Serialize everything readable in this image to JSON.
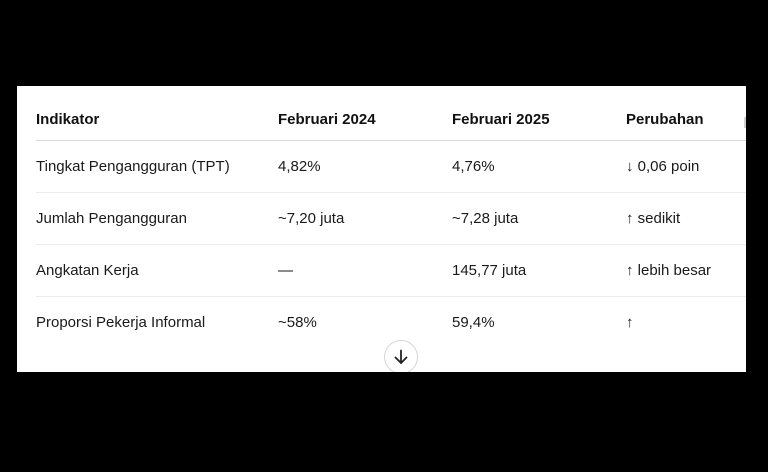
{
  "table": {
    "headers": [
      "Indikator",
      "Februari 2024",
      "Februari 2025",
      "Perubahan"
    ],
    "rows": [
      [
        "Tingkat Pengangguran (TPT)",
        "4,82%",
        "4,76%",
        "↓ 0,06 poin"
      ],
      [
        "Jumlah Pengangguran",
        "~7,20 juta",
        "~7,28 juta",
        "↑ sedikit"
      ],
      [
        "Angkatan Kerja",
        "—",
        "145,77 juta",
        "↑ lebih besar"
      ],
      [
        "Proporsi Pekerja Informal",
        "~58%",
        "59,4%",
        "↑"
      ]
    ]
  },
  "scroll_button": {
    "icon": "arrow-down-icon"
  }
}
